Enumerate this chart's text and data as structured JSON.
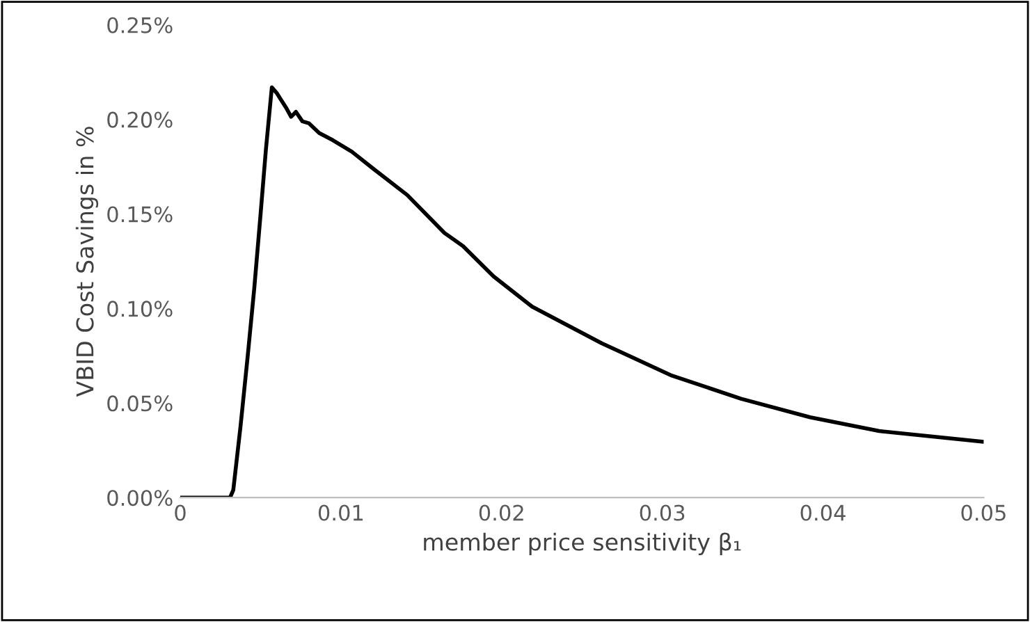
{
  "chart_data": {
    "type": "line",
    "xlabel": "member price sensitivity β₁",
    "ylabel": "VBID Cost Savings in %",
    "series": [
      {
        "color": "#000000",
        "x": [
          0,
          0.0031,
          0.0033,
          0.00375,
          0.0042,
          0.00461,
          0.005,
          0.00533,
          0.0057,
          0.006,
          0.0063,
          0.0066,
          0.0069,
          0.0072,
          0.0076,
          0.008,
          0.00865,
          0.0095,
          0.01067,
          0.01211,
          0.01413,
          0.01644,
          0.0176,
          0.0195,
          0.0219,
          0.02624,
          0.0306,
          0.0349,
          0.0392,
          0.0435,
          0.05
        ],
        "values": [
          0,
          0,
          0.004,
          0.0376,
          0.075,
          0.111,
          0.15,
          0.184,
          0.217,
          0.214,
          0.21,
          0.206,
          0.2014,
          0.204,
          0.199,
          0.198,
          0.1928,
          0.189,
          0.183,
          0.1733,
          0.16,
          0.14,
          0.133,
          0.117,
          0.101,
          0.0816,
          0.0645,
          0.0523,
          0.0425,
          0.0352,
          0.0295
        ]
      }
    ],
    "xlim": [
      0,
      0.05
    ],
    "xticks": [
      0,
      0.01,
      0.02,
      0.03,
      0.04,
      0.05
    ],
    "ylim": [
      0,
      0.25
    ],
    "yticks": [
      {
        "value": 0,
        "label": "0.00%"
      },
      {
        "value": 0.05,
        "label": "0.05%"
      },
      {
        "value": 0.1,
        "label": "0.10%"
      },
      {
        "value": 0.15,
        "label": "0.15%"
      },
      {
        "value": 0.2,
        "label": "0.20%"
      },
      {
        "value": 0.25,
        "label": "0.25%"
      }
    ],
    "grid": false,
    "legend": false,
    "marker": "none",
    "line_style": "solid"
  }
}
